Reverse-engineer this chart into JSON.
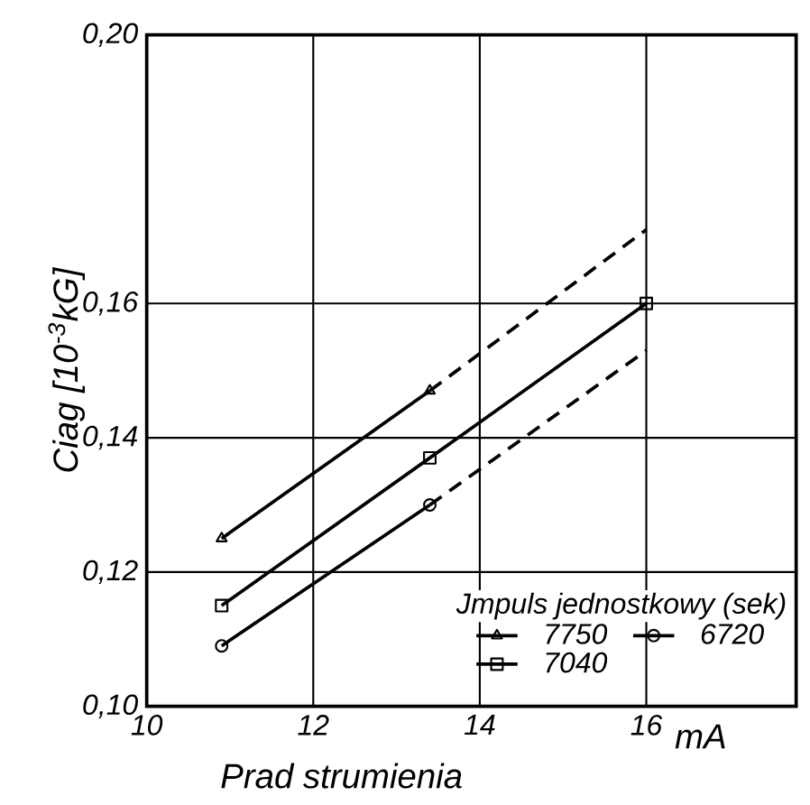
{
  "chart_data": {
    "type": "line",
    "xlabel": "Prad strumienia",
    "ylabel": "Ciag [10$^{-3}$kG]",
    "legend_title": "Jmpuls jednostkowy (sek)",
    "annotations": [
      "mA"
    ],
    "xlim": [
      10,
      17.8
    ],
    "ylim": [
      0.1,
      0.2
    ],
    "xticks": [
      10,
      12,
      14,
      16
    ],
    "yticks": [
      {
        "value": 0.1,
        "label": "0,10"
      },
      {
        "value": 0.12,
        "label": "0,12"
      },
      {
        "value": 0.14,
        "label": "0,14"
      },
      {
        "value": 0.16,
        "label": "0,16"
      },
      {
        "value": 0.2,
        "label": "0,20"
      }
    ],
    "grid": true,
    "legend": "bottom right",
    "series": [
      {
        "name": "7750",
        "color": "#000000",
        "marker": "triangle",
        "line_style": "solid",
        "x": [
          10.9,
          13.4
        ],
        "values": [
          0.125,
          0.147
        ]
      },
      {
        "name": "6720",
        "color": "#000000",
        "marker": "circle",
        "line_style": "solid",
        "x": [
          10.9,
          13.4
        ],
        "values": [
          0.109,
          0.13
        ]
      },
      {
        "name": "7040",
        "color": "#000000",
        "marker": "square",
        "line_style": "solid",
        "x": [
          10.9,
          13.4,
          16
        ],
        "values": [
          0.115,
          0.137,
          0.16
        ]
      },
      {
        "color": "#000000",
        "marker": "none",
        "line_style": "dashed",
        "x": [
          13.4,
          16
        ],
        "values": [
          0.147,
          0.171
        ]
      },
      {
        "color": "#000000",
        "marker": "none",
        "line_style": "dashed",
        "x": [
          13.4,
          16
        ],
        "values": [
          0.13,
          0.153
        ]
      }
    ]
  }
}
